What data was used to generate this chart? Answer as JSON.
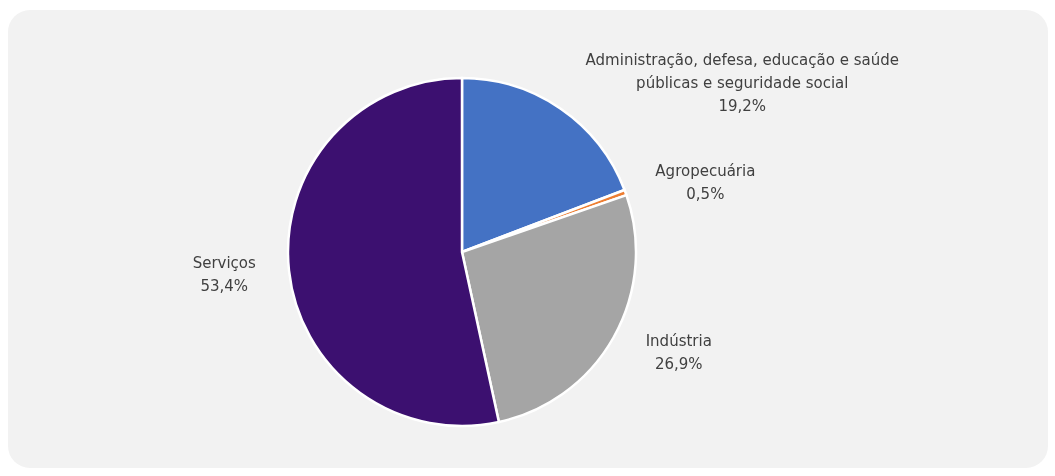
{
  "chart_data": {
    "type": "pie",
    "categories": [
      "Administração, defesa, educação e saúde públicas e seguridade social",
      "Agropecuária",
      "Indústria",
      "Serviços"
    ],
    "values": [
      19.2,
      0.5,
      26.9,
      53.4
    ],
    "colors": [
      "#4472c4",
      "#ed7d31",
      "#a5a5a5",
      "#3c1070"
    ],
    "value_labels": [
      "19,2%",
      "0,5%",
      "26,9%",
      "53,4%"
    ]
  }
}
